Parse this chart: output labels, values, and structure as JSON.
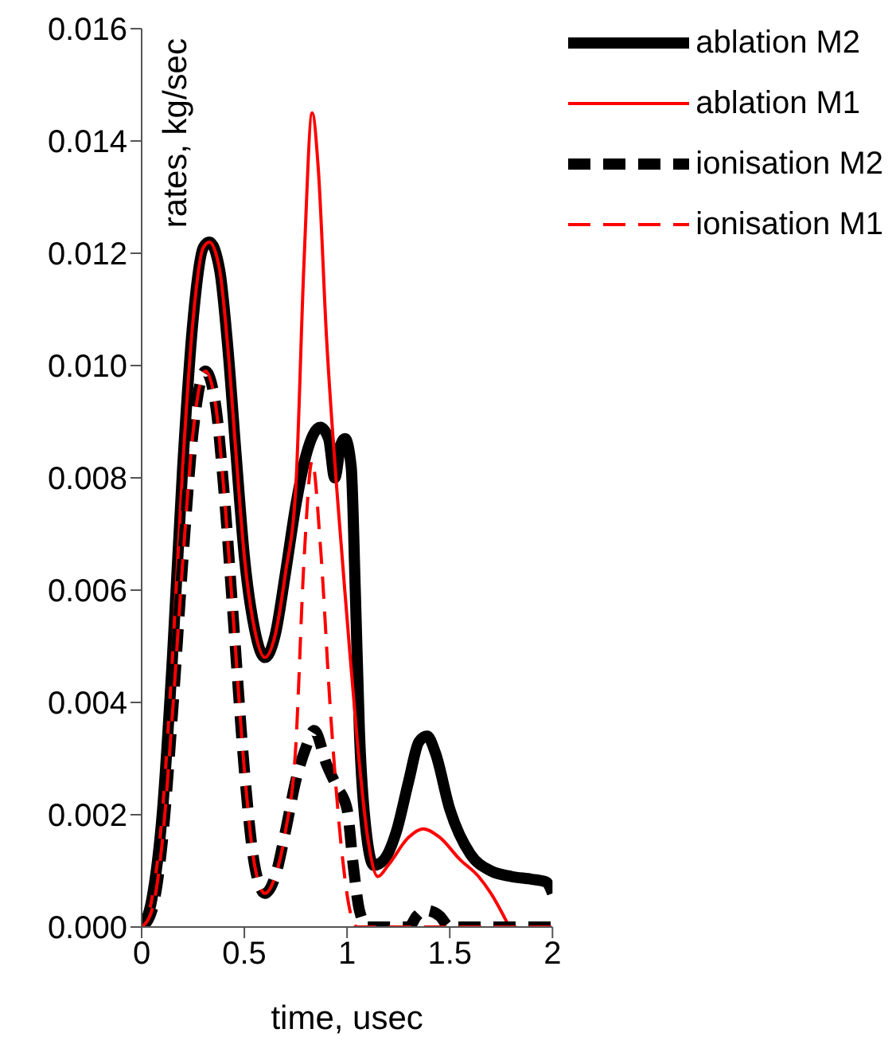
{
  "chart_data": {
    "type": "line",
    "xlabel": "time, usec",
    "ylabel": "rates, kg/sec",
    "xlim": [
      0,
      2
    ],
    "xticks": [
      0,
      0.5,
      1,
      1.5,
      2
    ],
    "ylim": [
      0,
      0.016
    ],
    "yticks": [
      {
        "value": 0,
        "label": "0.000"
      },
      {
        "value": 0.002,
        "label": "0.002"
      },
      {
        "value": 0.004,
        "label": "0.004"
      },
      {
        "value": 0.006,
        "label": "0.006"
      },
      {
        "value": 0.008,
        "label": "0.008"
      },
      {
        "value": 0.01,
        "label": "0.010"
      },
      {
        "value": 0.012,
        "label": "0.012"
      },
      {
        "value": 0.014,
        "label": "0.014"
      },
      {
        "value": 0.016,
        "label": "0.016"
      }
    ],
    "grid": false,
    "legend": "top right",
    "marker": "none",
    "series": [
      {
        "name": "ablation M2",
        "color": "#000000",
        "line_style": "solid",
        "x": [
          0,
          0.05,
          0.1,
          0.15,
          0.2,
          0.25,
          0.3,
          0.33,
          0.38,
          0.42,
          0.46,
          0.5,
          0.55,
          0.6,
          0.65,
          0.7,
          0.75,
          0.8,
          0.87,
          0.91,
          0.94,
          0.97,
          0.99,
          1.02,
          1.04,
          1.06,
          1.09,
          1.13,
          1.18,
          1.24,
          1.3,
          1.35,
          1.39,
          1.43,
          1.5,
          1.6,
          1.7,
          1.8,
          1.9,
          1.97,
          2
        ],
        "values": [
          0,
          0.0005,
          0.002,
          0.0048,
          0.0082,
          0.0108,
          0.0121,
          0.0122,
          0.0117,
          0.0103,
          0.0084,
          0.0066,
          0.0053,
          0.0048,
          0.0052,
          0.0063,
          0.0075,
          0.0084,
          0.0089,
          0.0087,
          0.008,
          0.0086,
          0.0087,
          0.0082,
          0.006,
          0.0035,
          0.0018,
          0.0011,
          0.0012,
          0.0017,
          0.0026,
          0.0033,
          0.0034,
          0.0031,
          0.0021,
          0.0013,
          0.001,
          0.0009,
          0.00085,
          0.0008,
          0.0006
        ]
      },
      {
        "name": "ablation M1",
        "color": "#ff0000",
        "line_style": "solid",
        "x": [
          0,
          0.05,
          0.1,
          0.15,
          0.2,
          0.25,
          0.3,
          0.33,
          0.38,
          0.42,
          0.46,
          0.5,
          0.55,
          0.6,
          0.65,
          0.7,
          0.75,
          0.79,
          0.83,
          0.86,
          0.9,
          0.95,
          1,
          1.05,
          1.1,
          1.15,
          1.2,
          1.3,
          1.37,
          1.45,
          1.55,
          1.64,
          1.7,
          1.79
        ],
        "values": [
          0,
          0.0005,
          0.002,
          0.0048,
          0.0082,
          0.0108,
          0.0121,
          0.0122,
          0.0117,
          0.0103,
          0.0084,
          0.0066,
          0.0053,
          0.0048,
          0.0052,
          0.0063,
          0.0078,
          0.0118,
          0.0145,
          0.0135,
          0.0105,
          0.0078,
          0.0055,
          0.0033,
          0.0016,
          0.0009,
          0.0011,
          0.0016,
          0.00175,
          0.0016,
          0.0012,
          0.0009,
          0.0006,
          0
        ]
      },
      {
        "name": "ionisation M2",
        "color": "#000000",
        "line_style": "dashed",
        "x": [
          0,
          0.05,
          0.1,
          0.15,
          0.2,
          0.25,
          0.31,
          0.36,
          0.4,
          0.45,
          0.5,
          0.55,
          0.6,
          0.65,
          0.7,
          0.75,
          0.8,
          0.84,
          0.9,
          0.95,
          1,
          1.03,
          1.06,
          1.1,
          1.3,
          1.34,
          1.38,
          1.45,
          1.5,
          2
        ],
        "values": [
          0,
          0.0003,
          0.0015,
          0.0038,
          0.0065,
          0.0088,
          0.0099,
          0.0093,
          0.0078,
          0.0053,
          0.0028,
          0.0011,
          0.0006,
          0.0009,
          0.0017,
          0.0026,
          0.0032,
          0.0035,
          0.0029,
          0.0025,
          0.0021,
          0.0011,
          0.0003,
          0,
          0,
          0.0002,
          0.0003,
          0.0002,
          0,
          0
        ]
      },
      {
        "name": "ionisation M1",
        "color": "#ff0000",
        "line_style": "dashed",
        "x": [
          0,
          0.05,
          0.1,
          0.15,
          0.2,
          0.25,
          0.31,
          0.36,
          0.4,
          0.45,
          0.5,
          0.55,
          0.6,
          0.65,
          0.7,
          0.75,
          0.79,
          0.83,
          0.87,
          0.92,
          0.97,
          1.02,
          1.05,
          2
        ],
        "values": [
          0,
          0.0003,
          0.0015,
          0.0038,
          0.0065,
          0.0088,
          0.0099,
          0.0093,
          0.0078,
          0.0053,
          0.0028,
          0.0011,
          0.0006,
          0.0009,
          0.0017,
          0.0032,
          0.0065,
          0.0083,
          0.0068,
          0.0038,
          0.0015,
          0.0002,
          0,
          0
        ]
      }
    ]
  }
}
